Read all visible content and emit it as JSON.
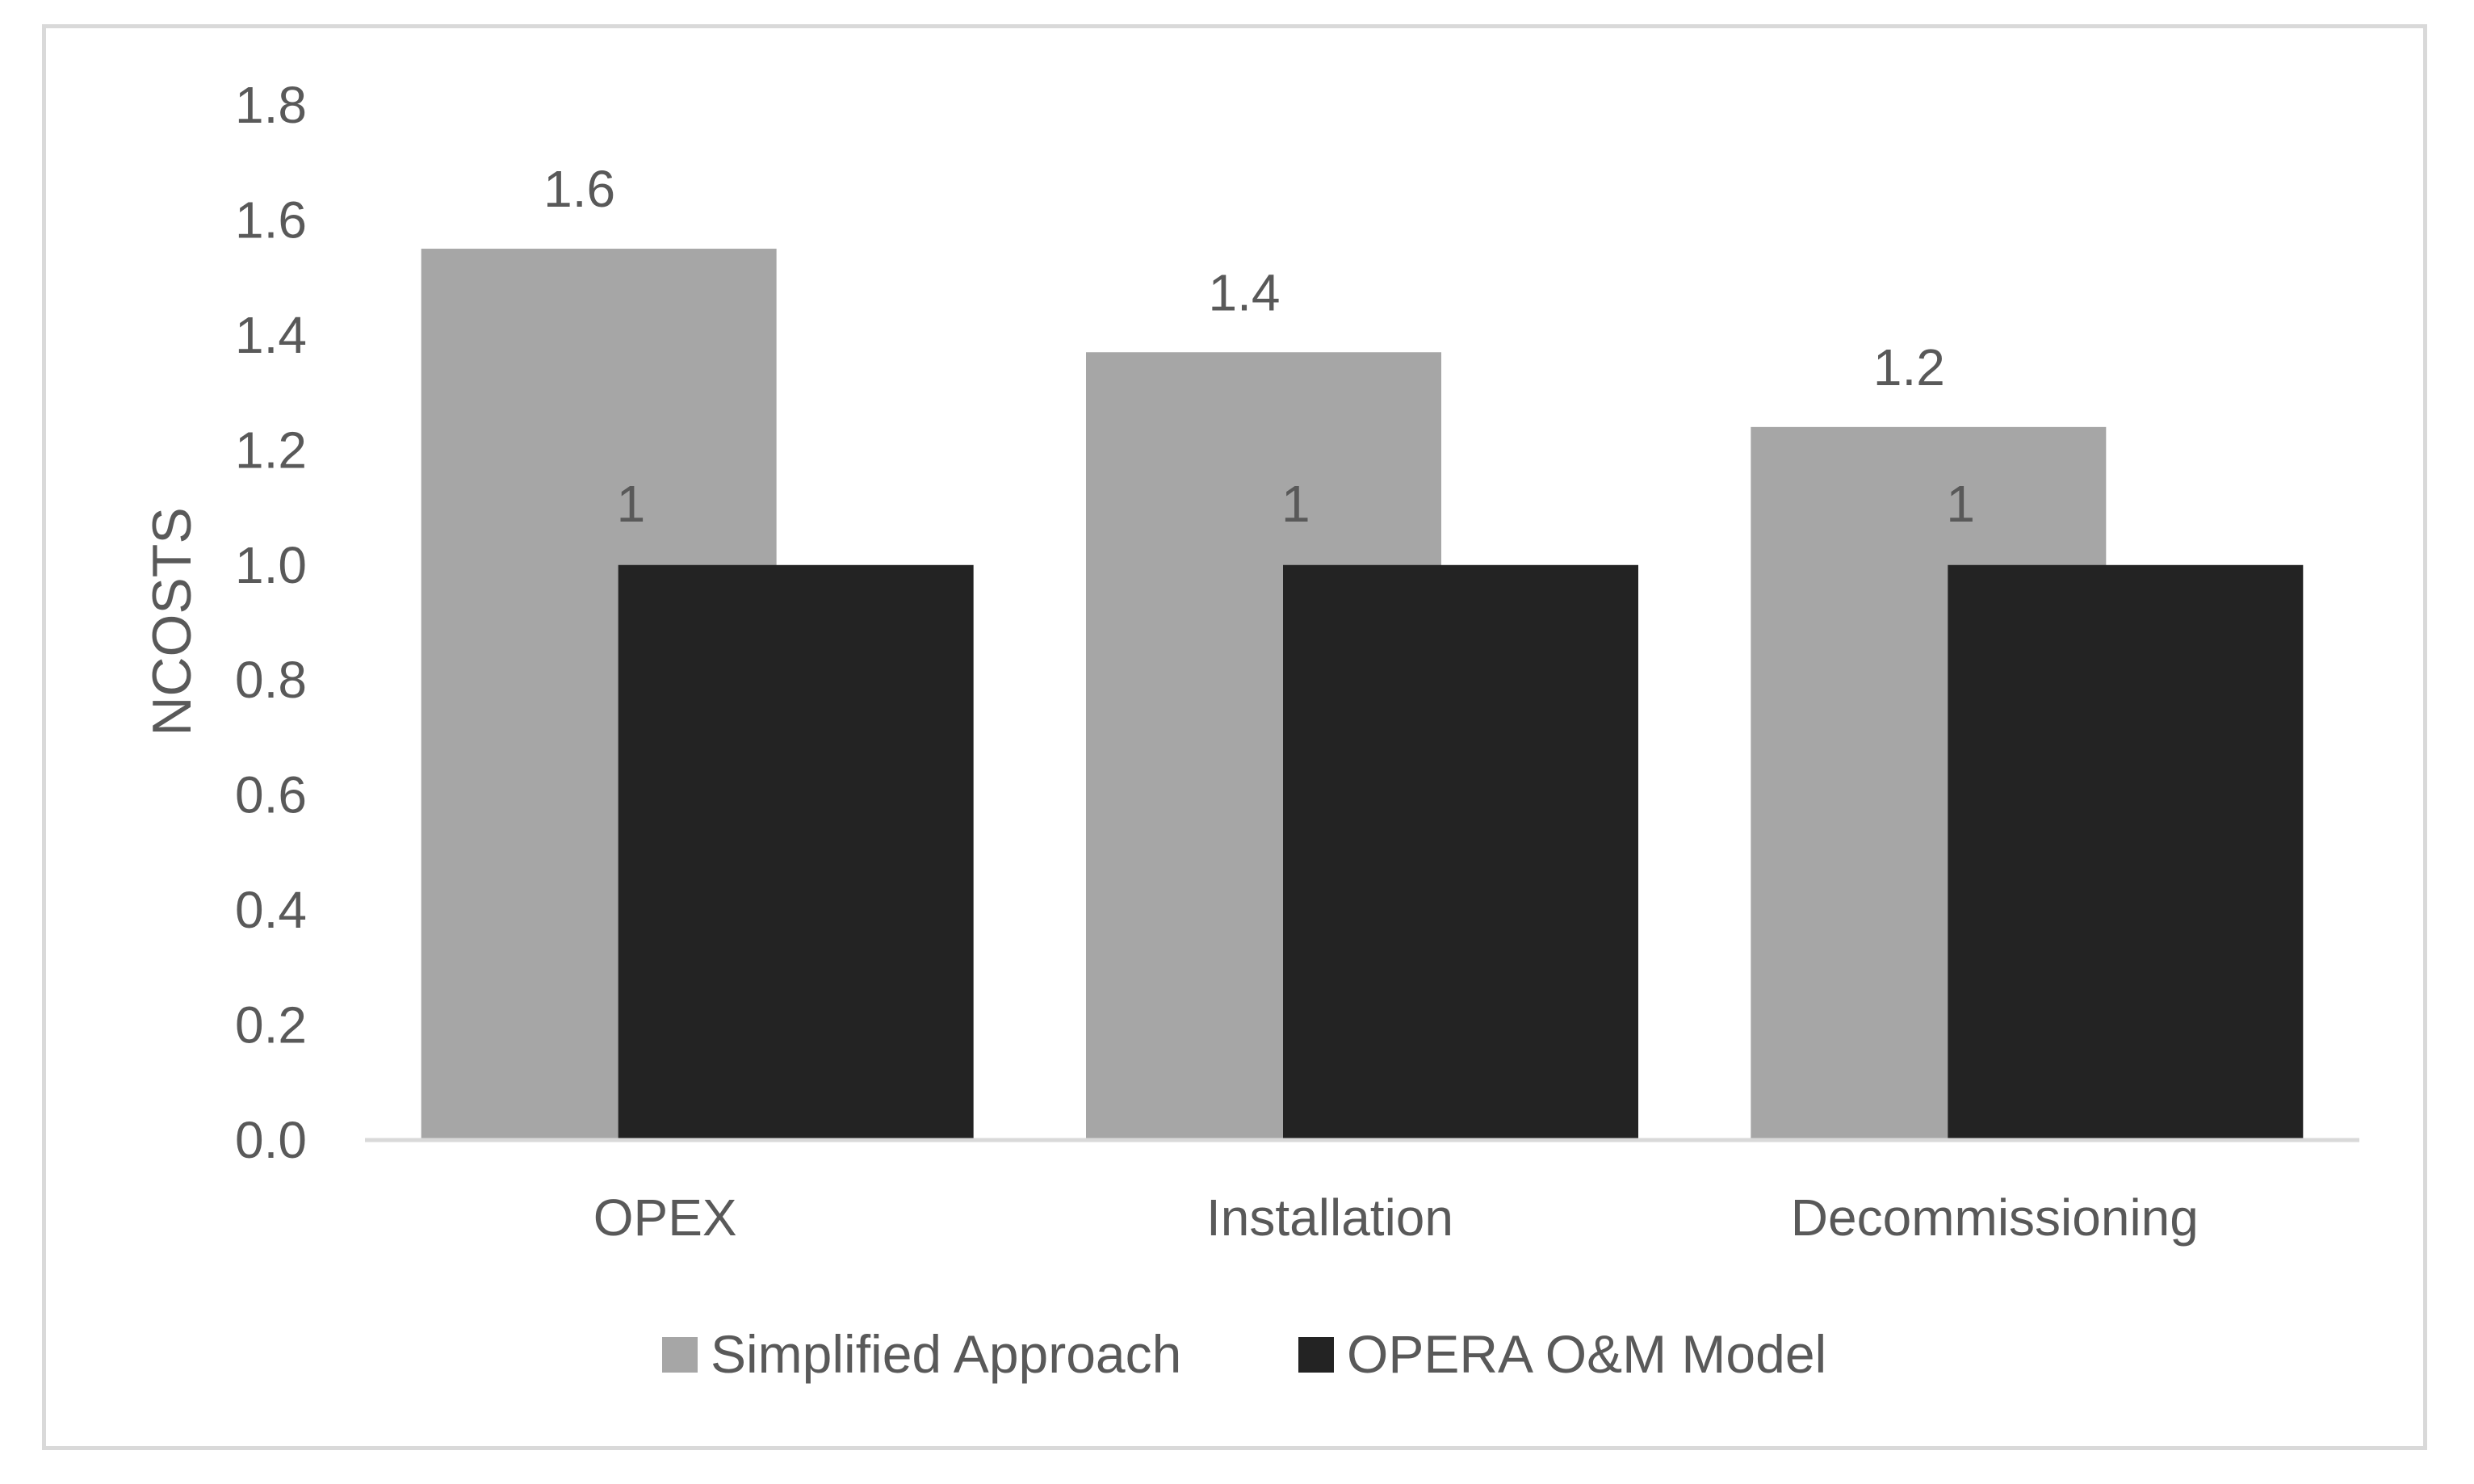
{
  "chart_data": {
    "type": "bar",
    "title": "",
    "xlabel": "",
    "ylabel": "NCOSTS",
    "ylim": [
      0,
      1.8
    ],
    "ytick_step": 0.2,
    "yticks": [
      "0.0",
      "0.2",
      "0.4",
      "0.6",
      "0.8",
      "1.0",
      "1.2",
      "1.4",
      "1.6",
      "1.8"
    ],
    "grid": false,
    "categories": [
      "OPEX",
      "Installation",
      "Decommissioning"
    ],
    "series": [
      {
        "name": "Simplified Approach",
        "color": "#a6a6a6",
        "values": [
          1.55,
          1.37,
          1.24
        ],
        "labels": [
          "1.6",
          "1.4",
          "1.2"
        ]
      },
      {
        "name": "OPERA O&M Model",
        "color": "#232323",
        "values": [
          1.0,
          1.0,
          1.0
        ],
        "labels": [
          "1",
          "1",
          "1"
        ]
      }
    ],
    "legend_position": "bottom-center",
    "bar_overlap": true
  }
}
